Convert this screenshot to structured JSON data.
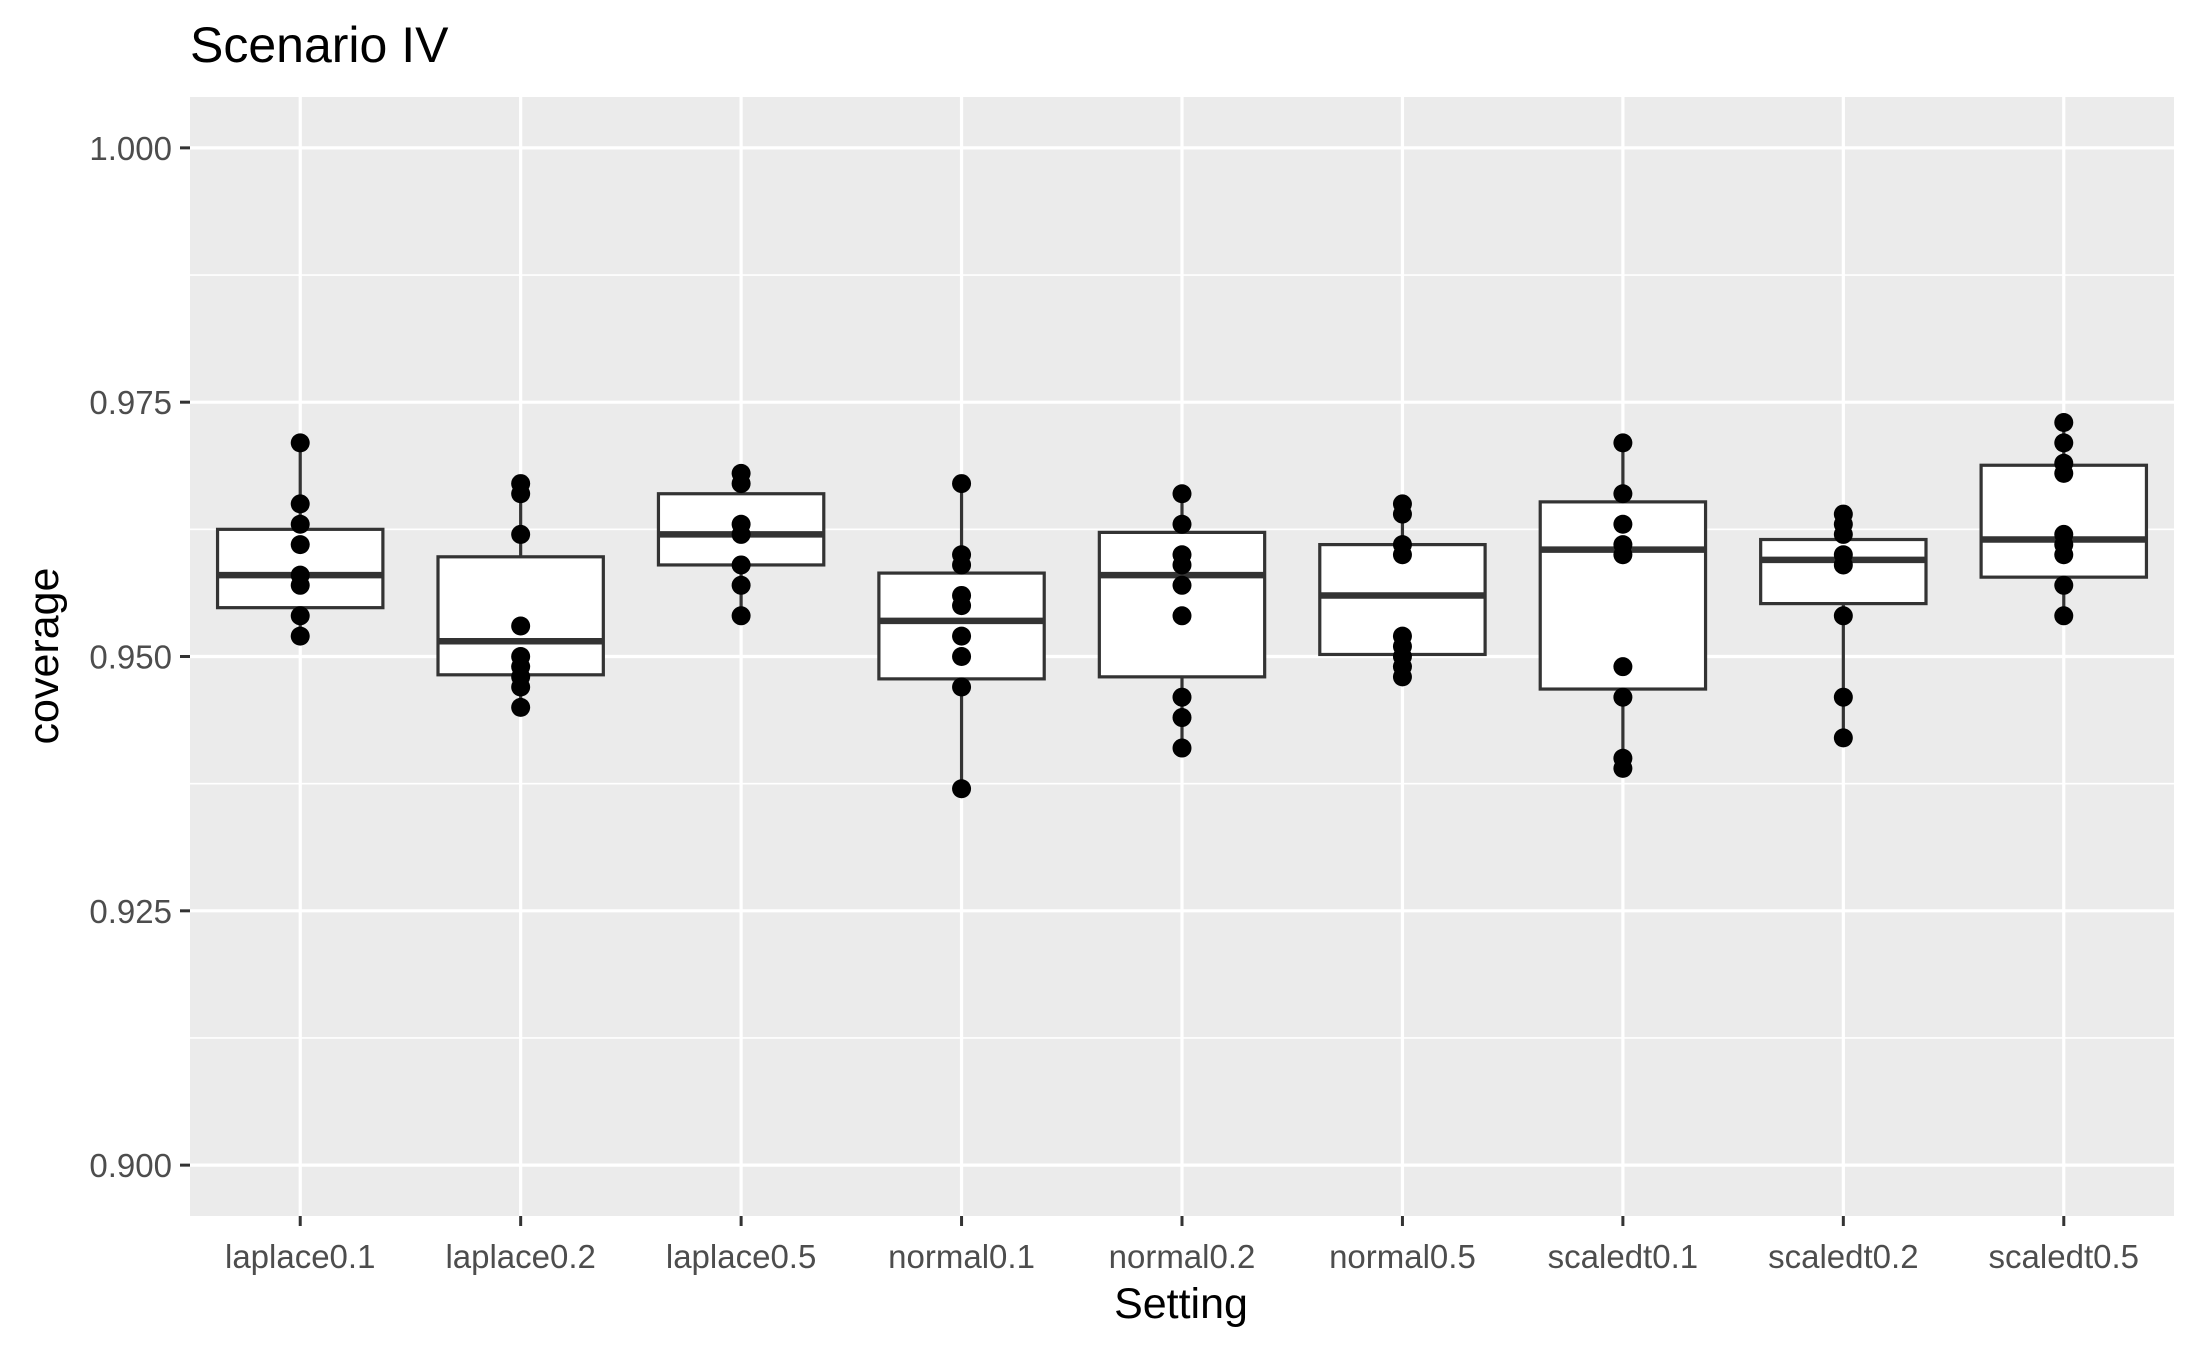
{
  "chart_data": {
    "type": "boxplot",
    "title": "Scenario IV",
    "xlabel": "Setting",
    "ylabel": "coverage",
    "ylim": [
      0.895,
      1.005
    ],
    "yticks": [
      "0.900",
      "0.925",
      "0.950",
      "0.975",
      "1.000"
    ],
    "ytick_values": [
      0.9,
      0.925,
      0.95,
      0.975,
      1.0
    ],
    "grid": true,
    "colors": {
      "panel": "#ebebeb",
      "grid": "#ffffff",
      "box_fill": "#ffffff",
      "box_line": "#333333",
      "point": "#000000"
    },
    "categories": [
      "laplace0.1",
      "laplace0.2",
      "laplace0.5",
      "normal0.1",
      "normal0.2",
      "normal0.5",
      "scaledt0.1",
      "scaledt0.2",
      "scaledt0.5"
    ],
    "boxes": [
      {
        "category": "laplace0.1",
        "whisker_low": 0.952,
        "q1": 0.9548,
        "median": 0.958,
        "q3": 0.9625,
        "whisker_high": 0.971,
        "points": [
          0.971,
          0.965,
          0.963,
          0.961,
          0.958,
          0.957,
          0.954,
          0.952
        ]
      },
      {
        "category": "laplace0.2",
        "whisker_low": 0.945,
        "q1": 0.9482,
        "median": 0.9515,
        "q3": 0.9598,
        "whisker_high": 0.967,
        "points": [
          0.967,
          0.966,
          0.962,
          0.953,
          0.95,
          0.949,
          0.948,
          0.947,
          0.945
        ]
      },
      {
        "category": "laplace0.5",
        "whisker_low": 0.954,
        "q1": 0.959,
        "median": 0.962,
        "q3": 0.966,
        "whisker_high": 0.968,
        "points": [
          0.968,
          0.967,
          0.963,
          0.962,
          0.959,
          0.957,
          0.954
        ]
      },
      {
        "category": "normal0.1",
        "whisker_low": 0.937,
        "q1": 0.9478,
        "median": 0.9535,
        "q3": 0.9582,
        "whisker_high": 0.967,
        "points": [
          0.967,
          0.96,
          0.959,
          0.956,
          0.955,
          0.952,
          0.95,
          0.947,
          0.937
        ]
      },
      {
        "category": "normal0.2",
        "whisker_low": 0.941,
        "q1": 0.948,
        "median": 0.958,
        "q3": 0.9622,
        "whisker_high": 0.966,
        "points": [
          0.966,
          0.963,
          0.96,
          0.959,
          0.957,
          0.954,
          0.946,
          0.944,
          0.941
        ]
      },
      {
        "category": "normal0.5",
        "whisker_low": 0.948,
        "q1": 0.9502,
        "median": 0.956,
        "q3": 0.961,
        "whisker_high": 0.965,
        "points": [
          0.965,
          0.964,
          0.961,
          0.96,
          0.952,
          0.951,
          0.95,
          0.949,
          0.948
        ]
      },
      {
        "category": "scaledt0.1",
        "whisker_low": 0.939,
        "q1": 0.9468,
        "median": 0.9605,
        "q3": 0.9652,
        "whisker_high": 0.971,
        "points": [
          0.971,
          0.966,
          0.963,
          0.961,
          0.96,
          0.949,
          0.946,
          0.94,
          0.939
        ]
      },
      {
        "category": "scaledt0.2",
        "whisker_low": 0.942,
        "q1": 0.9552,
        "median": 0.9595,
        "q3": 0.9615,
        "whisker_high": 0.964,
        "points": [
          0.964,
          0.963,
          0.962,
          0.96,
          0.959,
          0.954,
          0.946,
          0.942
        ]
      },
      {
        "category": "scaledt0.5",
        "whisker_low": 0.954,
        "q1": 0.9578,
        "median": 0.9615,
        "q3": 0.9688,
        "whisker_high": 0.973,
        "points": [
          0.973,
          0.971,
          0.969,
          0.968,
          0.962,
          0.961,
          0.96,
          0.957,
          0.954
        ]
      }
    ]
  }
}
